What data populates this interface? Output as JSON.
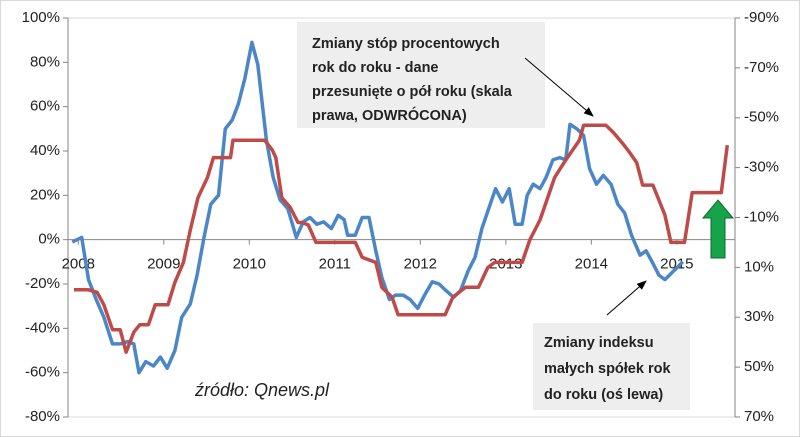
{
  "chart_data": {
    "type": "line",
    "xlim": [
      2007.88,
      2015.68
    ],
    "xticks": [
      2008,
      2009,
      2010,
      2011,
      2012,
      2013,
      2014,
      2015
    ],
    "ylim": [
      -80,
      100
    ],
    "yticks": [
      {
        "value": -80,
        "label": "-80%"
      },
      {
        "value": -60,
        "label": "-60%"
      },
      {
        "value": -40,
        "label": "-40%"
      },
      {
        "value": -20,
        "label": "-20%"
      },
      {
        "value": 0,
        "label": "0%"
      },
      {
        "value": 20,
        "label": "20%"
      },
      {
        "value": 40,
        "label": "40%"
      },
      {
        "value": 60,
        "label": "60%"
      },
      {
        "value": 80,
        "label": "80%"
      },
      {
        "value": 100,
        "label": "100%"
      }
    ],
    "y2lim": [
      -90,
      70
    ],
    "y2_inverted": true,
    "y2ticks": [
      {
        "value": -90,
        "label": "-90%"
      },
      {
        "value": -70,
        "label": "-70%"
      },
      {
        "value": -50,
        "label": "-50%"
      },
      {
        "value": -30,
        "label": "-30%"
      },
      {
        "value": -10,
        "label": "-10%"
      },
      {
        "value": 10,
        "label": "10%"
      },
      {
        "value": 30,
        "label": "30%"
      },
      {
        "value": 50,
        "label": "50%"
      },
      {
        "value": 70,
        "label": "70%"
      }
    ],
    "series": [
      {
        "color": "#4a86c8",
        "axis": "y",
        "x": [
          2007.93,
          2008.04,
          2008.12,
          2008.21,
          2008.3,
          2008.4,
          2008.49,
          2008.58,
          2008.65,
          2008.71,
          2008.79,
          2008.88,
          2008.96,
          2009.04,
          2009.13,
          2009.21,
          2009.31,
          2009.39,
          2009.47,
          2009.55,
          2009.64,
          2009.72,
          2009.8,
          2009.87,
          2009.95,
          2010.03,
          2010.1,
          2010.2,
          2010.28,
          2010.36,
          2010.45,
          2010.55,
          2010.63,
          2010.71,
          2010.79,
          2010.87,
          2010.96,
          2011.04,
          2011.11,
          2011.15,
          2011.24,
          2011.32,
          2011.4,
          2011.48,
          2011.55,
          2011.64,
          2011.71,
          2011.8,
          2011.88,
          2011.97,
          2012.05,
          2012.14,
          2012.22,
          2012.3,
          2012.39,
          2012.47,
          2012.56,
          2012.64,
          2012.72,
          2012.8,
          2012.88,
          2012.96,
          2013.04,
          2013.11,
          2013.19,
          2013.25,
          2013.32,
          2013.4,
          2013.47,
          2013.55,
          2013.63,
          2013.7,
          2013.75,
          2013.83,
          2013.91,
          2013.98,
          2014.06,
          2014.14,
          2014.23,
          2014.31,
          2014.39,
          2014.47,
          2014.57,
          2014.64,
          2014.71,
          2014.79,
          2014.86,
          2014.94,
          2015.07
        ],
        "values": [
          -1,
          1,
          -18,
          -27,
          -35,
          -47,
          -47,
          -46,
          -47,
          -60,
          -55,
          -57,
          -53,
          -58,
          -50,
          -35,
          -29,
          -16,
          1,
          16,
          20,
          50,
          54,
          61,
          73,
          89,
          79,
          45,
          28,
          18,
          14,
          1,
          8,
          10,
          7,
          8,
          5,
          11,
          9,
          2,
          2,
          10,
          10,
          -5,
          -17,
          -27,
          -25,
          -25,
          -27,
          -31,
          -25,
          -19,
          -20,
          -23,
          -26,
          -23,
          -14,
          -8,
          5,
          14,
          23,
          17,
          23,
          7,
          7,
          20,
          25,
          23,
          28,
          36,
          37,
          36,
          52,
          50,
          47,
          32,
          25,
          29,
          25,
          16,
          12,
          2,
          -7,
          -5,
          -10,
          -16,
          -18,
          -15,
          -10
        ]
      },
      {
        "color": "#be4b48",
        "axis": "y2",
        "x": [
          2007.95,
          2008.12,
          2008.22,
          2008.3,
          2008.4,
          2008.49,
          2008.56,
          2008.65,
          2008.72,
          2008.82,
          2008.9,
          2009.05,
          2009.13,
          2009.23,
          2009.31,
          2009.4,
          2009.51,
          2009.58,
          2009.68,
          2009.78,
          2009.81,
          2010.18,
          2010.27,
          2010.31,
          2010.38,
          2010.48,
          2010.57,
          2010.62,
          2010.69,
          2010.78,
          2010.97,
          2011.24,
          2011.32,
          2011.48,
          2011.55,
          2011.67,
          2011.74,
          2011.88,
          2012.14,
          2012.29,
          2012.38,
          2012.53,
          2012.68,
          2012.79,
          2012.87,
          2013.02,
          2013.19,
          2013.28,
          2013.4,
          2013.48,
          2013.57,
          2013.7,
          2013.86,
          2013.91,
          2014.1,
          2014.17,
          2014.26,
          2014.36,
          2014.45,
          2014.53,
          2014.6,
          2014.72,
          2014.79,
          2014.86,
          2014.93,
          2015.09,
          2015.18,
          2015.35,
          2015.52,
          2015.59
        ],
        "values": [
          19,
          19,
          20,
          25,
          35,
          35,
          44,
          36,
          33,
          33,
          25,
          25,
          16,
          8,
          -5,
          -18,
          -26,
          -34,
          -34,
          -34,
          -41,
          -41,
          -37,
          -34,
          -18,
          -14,
          -8,
          -8,
          -7,
          0,
          0,
          0,
          6,
          8,
          18,
          22,
          29,
          29,
          29,
          29,
          22,
          18,
          18,
          10,
          8,
          8,
          8,
          -1,
          -9,
          -17,
          -26,
          -33,
          -41,
          -47,
          -47,
          -47,
          -44,
          -40,
          -36,
          -32,
          -23,
          -23,
          -17,
          -11,
          0,
          0,
          -20,
          -20,
          -20,
          -39
        ]
      }
    ],
    "annotations": [
      {
        "lines": [
          "Zmiany stóp procentowych",
          "rok do roku - dane",
          "przesunięte o pół roku (skala",
          "prawa, ODWRÓCONA)"
        ]
      },
      {
        "lines": [
          "Zmiany indeksu",
          "małych spółek rok",
          "do roku (oś lewa)"
        ]
      }
    ],
    "source": "źródło: Qnews.pl"
  }
}
